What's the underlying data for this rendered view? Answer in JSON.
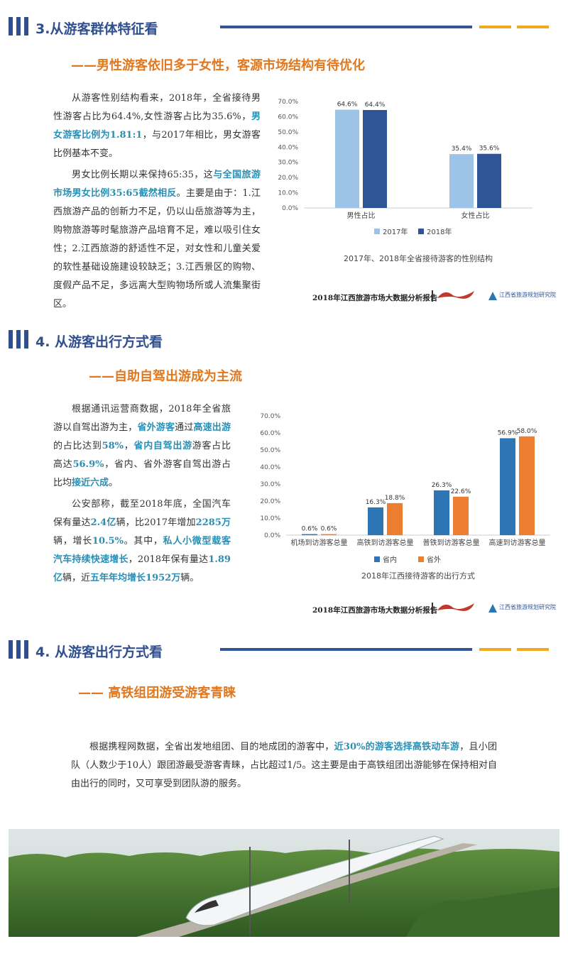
{
  "sections": [
    {
      "heading": "3.从游客群体特征看",
      "subtitle": "——男性游客依旧多于女性，客源市场结构有待优化",
      "paragraphs": [
        [
          {
            "text": "从游客性别结构看来，2018年，全省接待男性游客占比为64.4%,女性游客占比为35.6%，"
          },
          {
            "text": "男女游客比例为1.81:1",
            "emphasis": true
          },
          {
            "text": "，与2017年相比，男女游客比例基本不变。"
          }
        ],
        [
          {
            "text": "男女比例长期以来保持65:35，这"
          },
          {
            "text": "与全国旅游市场男女比例35:65截然相反",
            "emphasis": true
          },
          {
            "text": "。主要是由于：1.江西旅游产品的创新力不足，仍以山岳旅游等为主，购物旅游等时髦旅游产品培育不足，难以吸引住女性；2.江西旅游的舒适性不足，对女性和儿童关爱的软性基础设施建设较缺乏；3.江西景区的购物、度假产品不足，多远离大型购物场所或人流集聚街区。"
          }
        ]
      ]
    },
    {
      "heading": "4. 从游客出行方式看",
      "subtitle": "——自助自驾出游成为主流",
      "paragraphs": [
        [
          {
            "text": "根据通讯运营商数据，2018年全省旅游以自驾出游为主，"
          },
          {
            "text": "省外游客",
            "emphasis": true
          },
          {
            "text": "通过"
          },
          {
            "text": "高速出游",
            "emphasis": true
          },
          {
            "text": "的占比达到"
          },
          {
            "text": "58%",
            "emphasis": true
          },
          {
            "text": "，"
          },
          {
            "text": "省内自驾出游",
            "emphasis": true
          },
          {
            "text": "游客占比高达"
          },
          {
            "text": "56.9%",
            "emphasis": true
          },
          {
            "text": "，省内、省外游客自驾出游占比均"
          },
          {
            "text": "接近六成",
            "emphasis": true
          },
          {
            "text": "。"
          }
        ],
        [
          {
            "text": "公安部称，截至2018年底，全国汽车保有量达"
          },
          {
            "text": "2.4亿",
            "emphasis": true
          },
          {
            "text": "辆，比2017年增加"
          },
          {
            "text": "2285万",
            "emphasis": true
          },
          {
            "text": "辆，增长"
          },
          {
            "text": "10.5%",
            "emphasis": true
          },
          {
            "text": "。其中，"
          },
          {
            "text": "私人小微型载客汽车持续快速增长",
            "emphasis": true
          },
          {
            "text": "，2018年保有量达"
          },
          {
            "text": "1.89亿",
            "emphasis": true
          },
          {
            "text": "辆，近"
          },
          {
            "text": "五年年均增长1952万",
            "emphasis": true
          },
          {
            "text": "辆。"
          }
        ]
      ]
    },
    {
      "heading": "4. 从游客出行方式看",
      "subtitle": "—— 高铁组团游受游客青睐",
      "paragraphs": [
        [
          {
            "text": "根据携程网数据，全省出发地组团、目的地成团的游客中，"
          },
          {
            "text": "近30%的游客选择高铁动车游",
            "emphasis": true
          },
          {
            "text": "，且小团队（人数少于10人）跟团游最受游客青睐，占比超过1/5。这主要是由于高铁组团出游能够在保持相对自由出行的同时，又可享受到团队游的服务。"
          }
        ]
      ]
    }
  ],
  "footer": {
    "report": "2018年江西旅游市场大数据分析报告",
    "institute": "江西省旅游规划研究院"
  },
  "chart_data": [
    {
      "type": "bar",
      "title": "2017年、2018年全省接待游客的性别结构",
      "categories": [
        "男性占比",
        "女性占比"
      ],
      "series": [
        {
          "name": "2017年",
          "color": "#9dc3e6",
          "values": [
            64.6,
            35.4
          ],
          "value_labels": [
            "64.6%",
            "35.4%"
          ]
        },
        {
          "name": "2018年",
          "color": "#2f5597",
          "values": [
            64.4,
            35.6
          ],
          "value_labels": [
            "64.4%",
            "35.6%"
          ]
        }
      ],
      "ylim": [
        0,
        70
      ],
      "yticks": [
        {
          "value": 0,
          "label": "0.0%"
        },
        {
          "value": 10,
          "label": "10.0%"
        },
        {
          "value": 20,
          "label": "20.0%"
        },
        {
          "value": 30,
          "label": "30.0%"
        },
        {
          "value": 40,
          "label": "40.0%"
        },
        {
          "value": 50,
          "label": "50.0%"
        },
        {
          "value": 60,
          "label": "60.0%"
        },
        {
          "value": 70,
          "label": "70.0%"
        }
      ],
      "grid": false
    },
    {
      "type": "bar",
      "title": "2018年江西接待游客的出行方式",
      "categories": [
        "机场到访游客总量",
        "高铁到访游客总量",
        "普铁到访游客总量",
        "高速到访游客总量"
      ],
      "series": [
        {
          "name": "省内",
          "color": "#2e75b6",
          "values": [
            0.6,
            16.3,
            26.3,
            56.9
          ],
          "value_labels": [
            "0.6%",
            "16.3%",
            "26.3%",
            "56.9%"
          ]
        },
        {
          "name": "省外",
          "color": "#ed7d31",
          "values": [
            0.6,
            18.8,
            22.6,
            58.0
          ],
          "value_labels": [
            "0.6%",
            "18.8%",
            "22.6%",
            "58.0%"
          ]
        }
      ],
      "ylim": [
        0,
        70
      ],
      "yticks": [
        {
          "value": 0,
          "label": "0.0%"
        },
        {
          "value": 10,
          "label": "10.0%"
        },
        {
          "value": 20,
          "label": "20.0%"
        },
        {
          "value": 30,
          "label": "30.0%"
        },
        {
          "value": 40,
          "label": "40.0%"
        },
        {
          "value": 50,
          "label": "50.0%"
        },
        {
          "value": 60,
          "label": "60.0%"
        },
        {
          "value": 70,
          "label": "70.0%"
        }
      ],
      "grid": false
    }
  ]
}
